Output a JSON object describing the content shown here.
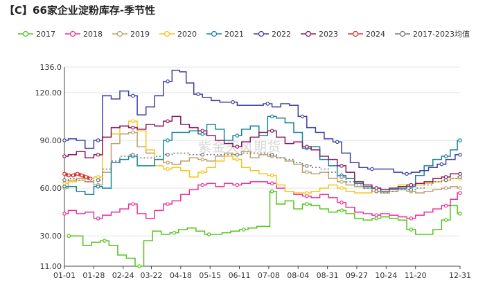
{
  "title": "【C】66家企业淀粉库存-季节性",
  "watermark": "紫金天风期货",
  "chart_data": {
    "type": "line",
    "title": "【C】66家企业淀粉库存-季节性",
    "xlabel": "",
    "ylabel": "",
    "x_domain": [
      1,
      365
    ],
    "ylim": [
      11,
      136
    ],
    "yticks": [
      11.0,
      30.0,
      60.0,
      90.0,
      120.0,
      136.0
    ],
    "ytick_labels": [
      "11.00",
      "30.00",
      "60.00",
      "90.00",
      "120.00",
      "136.0"
    ],
    "xticks": [
      {
        "day": 1,
        "label": "01-01"
      },
      {
        "day": 28,
        "label": "01-28"
      },
      {
        "day": 55,
        "label": "02-24"
      },
      {
        "day": 81,
        "label": "03-22"
      },
      {
        "day": 108,
        "label": "04-18"
      },
      {
        "day": 135,
        "label": "05-15"
      },
      {
        "day": 162,
        "label": "06-11"
      },
      {
        "day": 189,
        "label": "07-08"
      },
      {
        "day": 216,
        "label": "08-04"
      },
      {
        "day": 243,
        "label": "08-31"
      },
      {
        "day": 270,
        "label": "09-27"
      },
      {
        "day": 297,
        "label": "10-24"
      },
      {
        "day": 324,
        "label": "11-20"
      },
      {
        "day": 365,
        "label": "12-31"
      }
    ],
    "grid": true,
    "legend_position": "top",
    "series": [
      {
        "name": "2017",
        "color": "#52c41a",
        "x": [
          5,
          14,
          22,
          30,
          38,
          46,
          54,
          62,
          70,
          78,
          86,
          94,
          102,
          110,
          118,
          126,
          134,
          142,
          150,
          158,
          166,
          174,
          182,
          188,
          192,
          200,
          208,
          216,
          224,
          232,
          240,
          248,
          256,
          264,
          272,
          280,
          288,
          296,
          304,
          312,
          320,
          328,
          336,
          344,
          352,
          360,
          365
        ],
        "y": [
          30,
          30,
          24,
          26,
          27,
          24,
          18,
          16,
          11,
          27,
          33,
          31,
          32,
          34,
          35,
          33,
          31,
          31,
          32,
          33,
          34,
          35,
          36,
          36,
          58,
          50,
          52,
          47,
          50,
          49,
          47,
          45,
          46,
          44,
          41,
          40,
          41,
          42,
          41,
          40,
          34,
          31,
          31,
          34,
          40,
          49,
          44
        ]
      },
      {
        "name": "2018",
        "color": "#eb2f96",
        "x": [
          1,
          8,
          16,
          24,
          32,
          40,
          48,
          56,
          64,
          72,
          80,
          88,
          96,
          104,
          112,
          120,
          128,
          136,
          144,
          152,
          160,
          168,
          176,
          184,
          192,
          200,
          208,
          216,
          224,
          232,
          240,
          248,
          256,
          264,
          272,
          280,
          288,
          296,
          304,
          312,
          320,
          328,
          336,
          344,
          352,
          360,
          365
        ],
        "y": [
          44,
          46,
          44,
          45,
          41,
          43,
          45,
          47,
          50,
          44,
          41,
          46,
          50,
          52,
          56,
          59,
          62,
          63,
          61,
          63,
          62,
          63,
          64,
          64,
          63,
          60,
          58,
          56,
          55,
          54,
          56,
          54,
          51,
          48,
          45,
          44,
          43,
          44,
          43,
          42,
          41,
          43,
          45,
          47,
          49,
          53,
          57
        ]
      },
      {
        "name": "2019",
        "color": "#bba071",
        "x": [
          1,
          8,
          16,
          24,
          32,
          40,
          48,
          56,
          64,
          72,
          80,
          88,
          96,
          104,
          112,
          120,
          128,
          136,
          144,
          152,
          160,
          168,
          176,
          184,
          192,
          200,
          208,
          216,
          224,
          232,
          240,
          248,
          256,
          264,
          272,
          280,
          288,
          296,
          304,
          312,
          320,
          328,
          336,
          344,
          352,
          360,
          365
        ],
        "y": [
          60,
          65,
          66,
          64,
          62,
          70,
          88,
          94,
          95,
          86,
          82,
          78,
          76,
          75,
          77,
          79,
          78,
          77,
          80,
          82,
          81,
          83,
          79,
          81,
          80,
          79,
          77,
          75,
          70,
          69,
          70,
          66,
          64,
          62,
          61,
          60,
          58,
          57,
          58,
          59,
          58,
          57,
          58,
          59,
          60,
          61,
          60
        ]
      },
      {
        "name": "2020",
        "color": "#f5c518",
        "x": [
          1,
          8,
          16,
          24,
          32,
          40,
          48,
          56,
          64,
          72,
          80,
          88,
          96,
          104,
          112,
          120,
          128,
          136,
          144,
          152,
          160,
          168,
          176,
          184,
          192,
          200,
          208,
          216,
          224,
          232,
          240,
          248,
          256,
          264,
          272,
          280,
          288,
          296,
          304,
          312,
          320,
          328,
          336,
          344,
          352,
          360,
          365
        ],
        "y": [
          63,
          64,
          65,
          66,
          67,
          92,
          94,
          99,
          102,
          96,
          84,
          74,
          72,
          73,
          71,
          67,
          70,
          73,
          77,
          80,
          78,
          73,
          71,
          69,
          68,
          62,
          58,
          57,
          57,
          58,
          60,
          62,
          60,
          58,
          57,
          57,
          58,
          59,
          60,
          62,
          61,
          62,
          63,
          64,
          65,
          66,
          66
        ]
      },
      {
        "name": "2021",
        "color": "#13849a",
        "x": [
          1,
          8,
          16,
          24,
          32,
          40,
          48,
          56,
          64,
          72,
          80,
          88,
          96,
          104,
          112,
          120,
          128,
          136,
          144,
          152,
          160,
          168,
          176,
          184,
          192,
          200,
          208,
          216,
          224,
          232,
          240,
          248,
          256,
          264,
          272,
          280,
          288,
          296,
          304,
          312,
          320,
          328,
          336,
          344,
          352,
          360,
          365
        ],
        "y": [
          61,
          61,
          58,
          56,
          61,
          60,
          76,
          78,
          80,
          74,
          74,
          78,
          90,
          95,
          95,
          96,
          94,
          100,
          97,
          90,
          93,
          97,
          99,
          93,
          105,
          104,
          101,
          95,
          85,
          86,
          78,
          74,
          68,
          66,
          63,
          61,
          60,
          58,
          59,
          60,
          61,
          68,
          74,
          78,
          80,
          84,
          90
        ]
      },
      {
        "name": "2022",
        "color": "#3d3fa0",
        "x": [
          1,
          8,
          16,
          24,
          32,
          40,
          48,
          56,
          64,
          72,
          80,
          88,
          96,
          104,
          110,
          116,
          124,
          132,
          140,
          148,
          156,
          164,
          172,
          180,
          188,
          196,
          204,
          212,
          220,
          228,
          236,
          244,
          252,
          260,
          268,
          276,
          284,
          292,
          300,
          308,
          316,
          324,
          332,
          340,
          348,
          356,
          365
        ],
        "y": [
          90,
          91,
          90,
          85,
          90,
          118,
          116,
          121,
          118,
          106,
          111,
          118,
          127,
          134,
          133,
          126,
          119,
          117,
          115,
          114,
          114,
          112,
          112,
          112,
          113,
          111,
          113,
          112,
          105,
          98,
          95,
          91,
          89,
          82,
          76,
          73,
          72,
          72,
          72,
          70,
          69,
          70,
          71,
          73,
          75,
          78,
          81
        ]
      },
      {
        "name": "2023",
        "color": "#8a1a5e",
        "x": [
          1,
          8,
          16,
          24,
          32,
          40,
          48,
          56,
          64,
          72,
          80,
          88,
          96,
          104,
          112,
          120,
          128,
          136,
          144,
          152,
          160,
          168,
          176,
          184,
          192,
          200,
          208,
          216,
          224,
          232,
          240,
          248,
          256,
          264,
          272,
          280,
          288,
          296,
          304,
          312,
          320,
          328,
          336,
          344,
          352,
          360,
          365
        ],
        "y": [
          80,
          81,
          83,
          79,
          81,
          92,
          98,
          99,
          98,
          97,
          100,
          99,
          102,
          105,
          100,
          98,
          96,
          93,
          90,
          88,
          86,
          89,
          92,
          95,
          96,
          92,
          88,
          89,
          86,
          84,
          80,
          78,
          74,
          70,
          64,
          62,
          60,
          59,
          60,
          61,
          62,
          63,
          64,
          66,
          67,
          69,
          69
        ]
      },
      {
        "name": "2024",
        "color": "#e02d2d",
        "x": [
          1,
          5,
          9,
          13,
          17,
          21,
          25
        ],
        "y": [
          69,
          68,
          68,
          69,
          68,
          67,
          66
        ]
      },
      {
        "name": "2017-2023均值",
        "color": "#777777",
        "dashed": true,
        "x": [
          1,
          8,
          16,
          24,
          32,
          40,
          48,
          56,
          64,
          72,
          80,
          88,
          96,
          104,
          112,
          120,
          128,
          136,
          144,
          152,
          160,
          168,
          176,
          184,
          192,
          200,
          208,
          216,
          224,
          232,
          240,
          248,
          256,
          264,
          272,
          280,
          288,
          296,
          304,
          312,
          320,
          328,
          336,
          344,
          352,
          360,
          365
        ],
        "y": [
          65,
          66,
          65,
          64,
          65,
          72,
          77,
          80,
          81,
          79,
          79,
          80,
          81,
          82,
          82,
          81,
          81,
          81,
          81,
          81,
          81,
          82,
          82,
          82,
          81,
          79,
          78,
          76,
          74,
          73,
          72,
          70,
          67,
          64,
          62,
          60,
          58,
          57,
          58,
          59,
          59,
          60,
          62,
          64,
          65,
          66,
          67
        ]
      }
    ]
  }
}
